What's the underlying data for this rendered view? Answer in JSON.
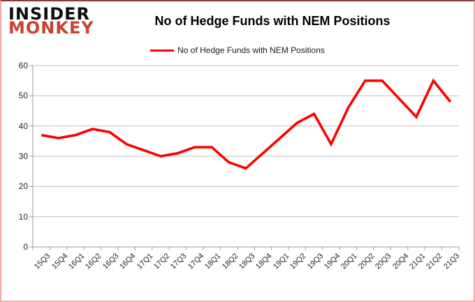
{
  "logo": {
    "line1": "INSIDER",
    "line2": "MONKEY",
    "accent_color": "#c8432f"
  },
  "header": {
    "title": "No of Hedge Funds with NEM Positions"
  },
  "legend": {
    "label": "No of Hedge Funds with NEM Positions",
    "line_color": "#ff0000"
  },
  "chart_data": {
    "type": "line",
    "title": "No of Hedge Funds with NEM Positions",
    "categories": [
      "15Q3",
      "15Q4",
      "16Q1",
      "16Q2",
      "16Q3",
      "16Q4",
      "17Q1",
      "17Q2",
      "17Q3",
      "17Q4",
      "18Q1",
      "18Q2",
      "18Q3",
      "18Q4",
      "19Q1",
      "19Q2",
      "19Q3",
      "19Q4",
      "20Q1",
      "20Q2",
      "20Q3",
      "20Q4",
      "21Q1",
      "21Q2",
      "21Q3"
    ],
    "series": [
      {
        "name": "No of Hedge Funds with NEM Positions",
        "color": "#ff0000",
        "values": [
          37,
          36,
          37,
          39,
          38,
          34,
          32,
          30,
          31,
          33,
          33,
          28,
          26,
          31,
          36,
          41,
          44,
          34,
          46,
          55,
          55,
          49,
          43,
          55,
          48
        ]
      }
    ],
    "xlabel": "",
    "ylabel": "",
    "ylim": [
      0,
      60
    ],
    "yticks": [
      0,
      10,
      20,
      30,
      40,
      50,
      60
    ],
    "grid": true,
    "legend_position": "top",
    "gridline_color": "#bfbfbf",
    "axis_color": "#9a9a9a",
    "tick_label_color": "#262626"
  }
}
